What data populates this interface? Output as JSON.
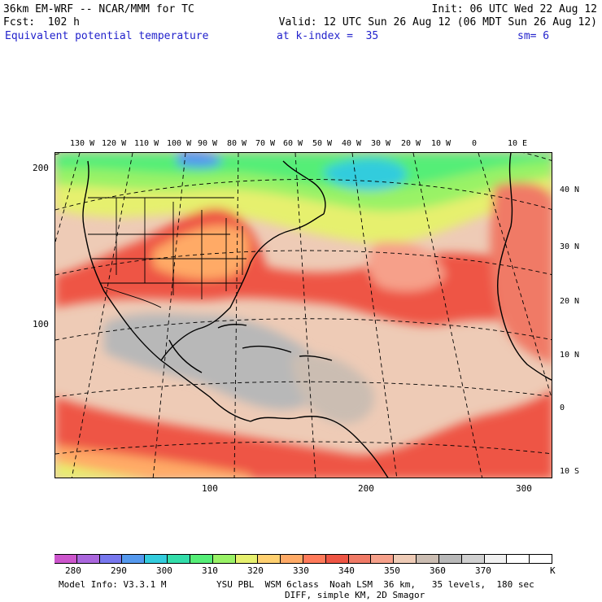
{
  "header": {
    "left_line1": "36km EM-WRF -- NCAR/MMM for TC",
    "left_line2": "Fcst:  102 h",
    "right_line1": "Init: 06 UTC Wed 22 Aug 12",
    "right_line2": "Valid: 12 UTC Sun 26 Aug 12 (06 MDT Sun 26 Aug 12)",
    "field_name": "Equivalent potential temperature",
    "level": "at k-index =  35",
    "smoothing": "sm= 6"
  },
  "map": {
    "longitude_labels": [
      "130 W",
      "120 W",
      "110 W",
      "100 W",
      "90 W",
      "80 W",
      "70 W",
      "60 W",
      "50 W",
      "40 W",
      "30 W",
      "20 W",
      "10 W",
      "0",
      "10 E"
    ],
    "latitude_labels": [
      "40 N",
      "30 N",
      "20 N",
      "10 N",
      "0",
      "10 S"
    ],
    "grid_y_labels": [
      "200",
      "100"
    ],
    "grid_x_labels": [
      "100",
      "200",
      "300"
    ]
  },
  "colorbar": {
    "colors": [
      "#cc55cc",
      "#aa66dd",
      "#7777ee",
      "#5599ee",
      "#33ccdd",
      "#33ddaa",
      "#55ee77",
      "#99f266",
      "#e6f06e",
      "#ffd070",
      "#ffaa66",
      "#ff7a5a",
      "#ee5544",
      "#f07a66",
      "#f6a08a",
      "#eecbb6",
      "#cbbdb2",
      "#b8b8b8",
      "#d0d0d0",
      "#f0f0f0",
      "#ffffff",
      "#ffffff"
    ],
    "labels": [
      "280",
      "290",
      "300",
      "310",
      "320",
      "330",
      "340",
      "350",
      "360",
      "370"
    ],
    "unit": "K"
  },
  "footer": {
    "model_info": "Model Info: V3.3.1 M",
    "physics_line1": "YSU PBL  WSM 6class  Noah LSM  36 km,   35 levels,  180 sec",
    "physics_line2": "DIFF, simple KM, 2D Smagor"
  }
}
